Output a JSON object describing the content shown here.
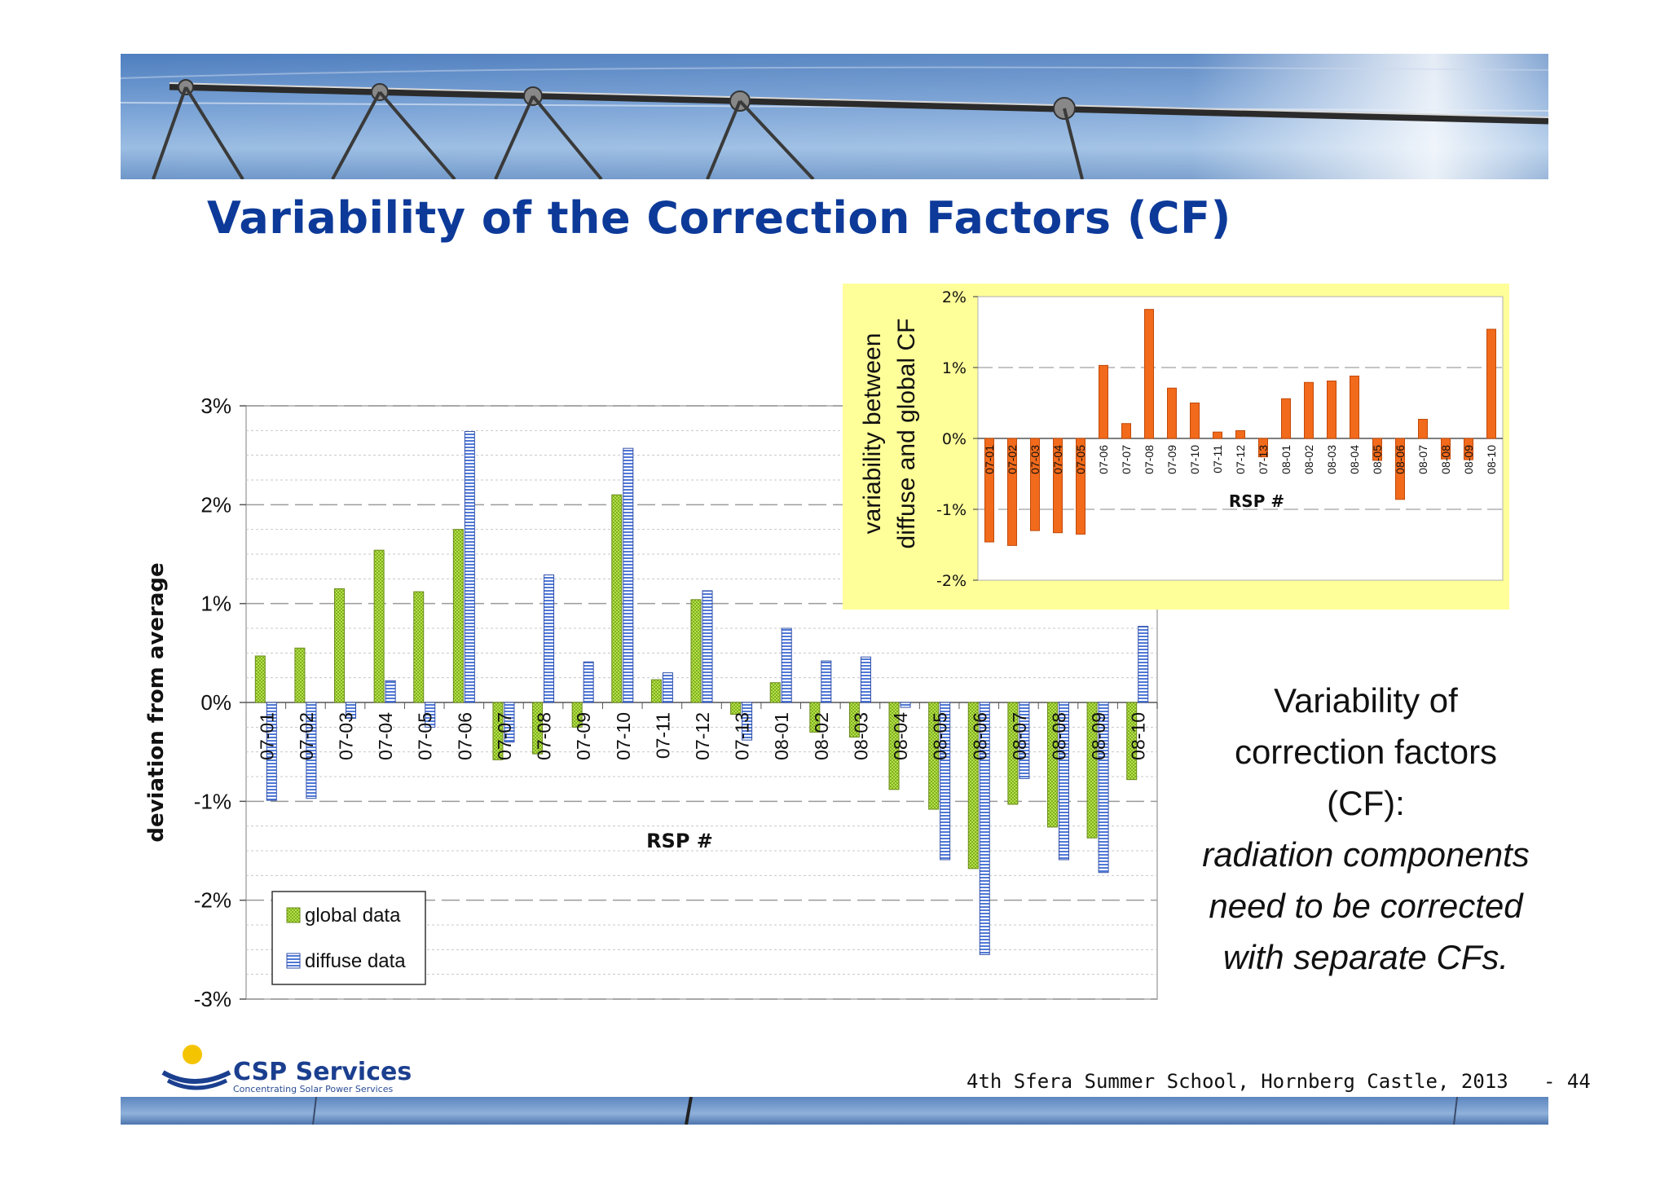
{
  "slide": {
    "title": "Variability of the Correction Factors (CF)",
    "side_text_lines": [
      {
        "text": "Variability of",
        "italic": false
      },
      {
        "text": "correction factors",
        "italic": false
      },
      {
        "text": "(CF):",
        "italic": false
      },
      {
        "text": "radiation components",
        "italic": true
      },
      {
        "text": "need to be corrected",
        "italic": true
      },
      {
        "text": "with separate CFs.",
        "italic": true
      }
    ],
    "footer": "4th Sfera Summer School, Hornberg Castle, 2013   - 44",
    "logo_name": "CSP Services",
    "logo_tagline": "Concentrating Solar Power Services",
    "colors": {
      "title": "#0d3a99",
      "global": "#9acd32",
      "diffuse": "#4a6fd0",
      "inset_bars": "#f26a1b",
      "inset_bg": "#ffff99"
    }
  },
  "chart_data": [
    {
      "type": "bar",
      "xlabel": "RSP #",
      "ylabel": "deviation from average",
      "ylim": [
        -3,
        3
      ],
      "yticks": [
        "3%",
        "2%",
        "1%",
        "0%",
        "-1%",
        "-2%",
        "-3%"
      ],
      "legend_position": "bottom-left",
      "categories": [
        "07-01",
        "07-02",
        "07-03",
        "07-04",
        "07-05",
        "07-06",
        "07-07",
        "07-08",
        "07-09",
        "07-10",
        "07-11",
        "07-12",
        "07-13",
        "08-01",
        "08-02",
        "08-03",
        "08-04",
        "08-05",
        "08-06",
        "08-07",
        "08-08",
        "08-09",
        "08-10"
      ],
      "series": [
        {
          "name": "global data",
          "values": [
            0.47,
            0.55,
            1.15,
            1.54,
            1.12,
            1.75,
            -0.58,
            -0.52,
            -0.25,
            2.1,
            0.23,
            1.04,
            -0.12,
            0.2,
            -0.3,
            -0.35,
            -0.88,
            -1.08,
            -1.68,
            -1.03,
            -1.26,
            -1.37,
            -0.78
          ]
        },
        {
          "name": "diffuse data",
          "values": [
            -0.99,
            -0.97,
            -0.16,
            0.22,
            -0.25,
            2.74,
            -0.4,
            1.29,
            0.41,
            2.57,
            0.3,
            1.13,
            -0.38,
            0.75,
            0.42,
            0.46,
            -0.05,
            -1.59,
            -2.55,
            -0.77,
            -1.59,
            -1.72,
            0.77
          ]
        }
      ]
    },
    {
      "type": "bar",
      "xlabel": "RSP #",
      "ylabel": "variability between diffuse and global CF",
      "ylabel_lines": [
        "variability between",
        "diffuse and global CF"
      ],
      "ylim": [
        -2,
        2
      ],
      "yticks": [
        "2%",
        "1%",
        "0%",
        "-1%",
        "-2%"
      ],
      "categories": [
        "07-01",
        "07-02",
        "07-03",
        "07-04",
        "07-05",
        "07-06",
        "07-07",
        "07-08",
        "07-09",
        "07-10",
        "07-11",
        "07-12",
        "07-13",
        "08-01",
        "08-02",
        "08-03",
        "08-04",
        "08-05",
        "08-06",
        "08-07",
        "08-08",
        "08-09",
        "08-10"
      ],
      "series": [
        {
          "values": [
            -1.46,
            -1.51,
            -1.3,
            -1.33,
            -1.35,
            1.03,
            0.21,
            1.82,
            0.71,
            0.5,
            0.09,
            0.11,
            -0.26,
            0.56,
            0.79,
            0.81,
            0.88,
            -0.31,
            -0.86,
            0.27,
            -0.29,
            -0.3,
            1.54
          ]
        }
      ]
    }
  ]
}
